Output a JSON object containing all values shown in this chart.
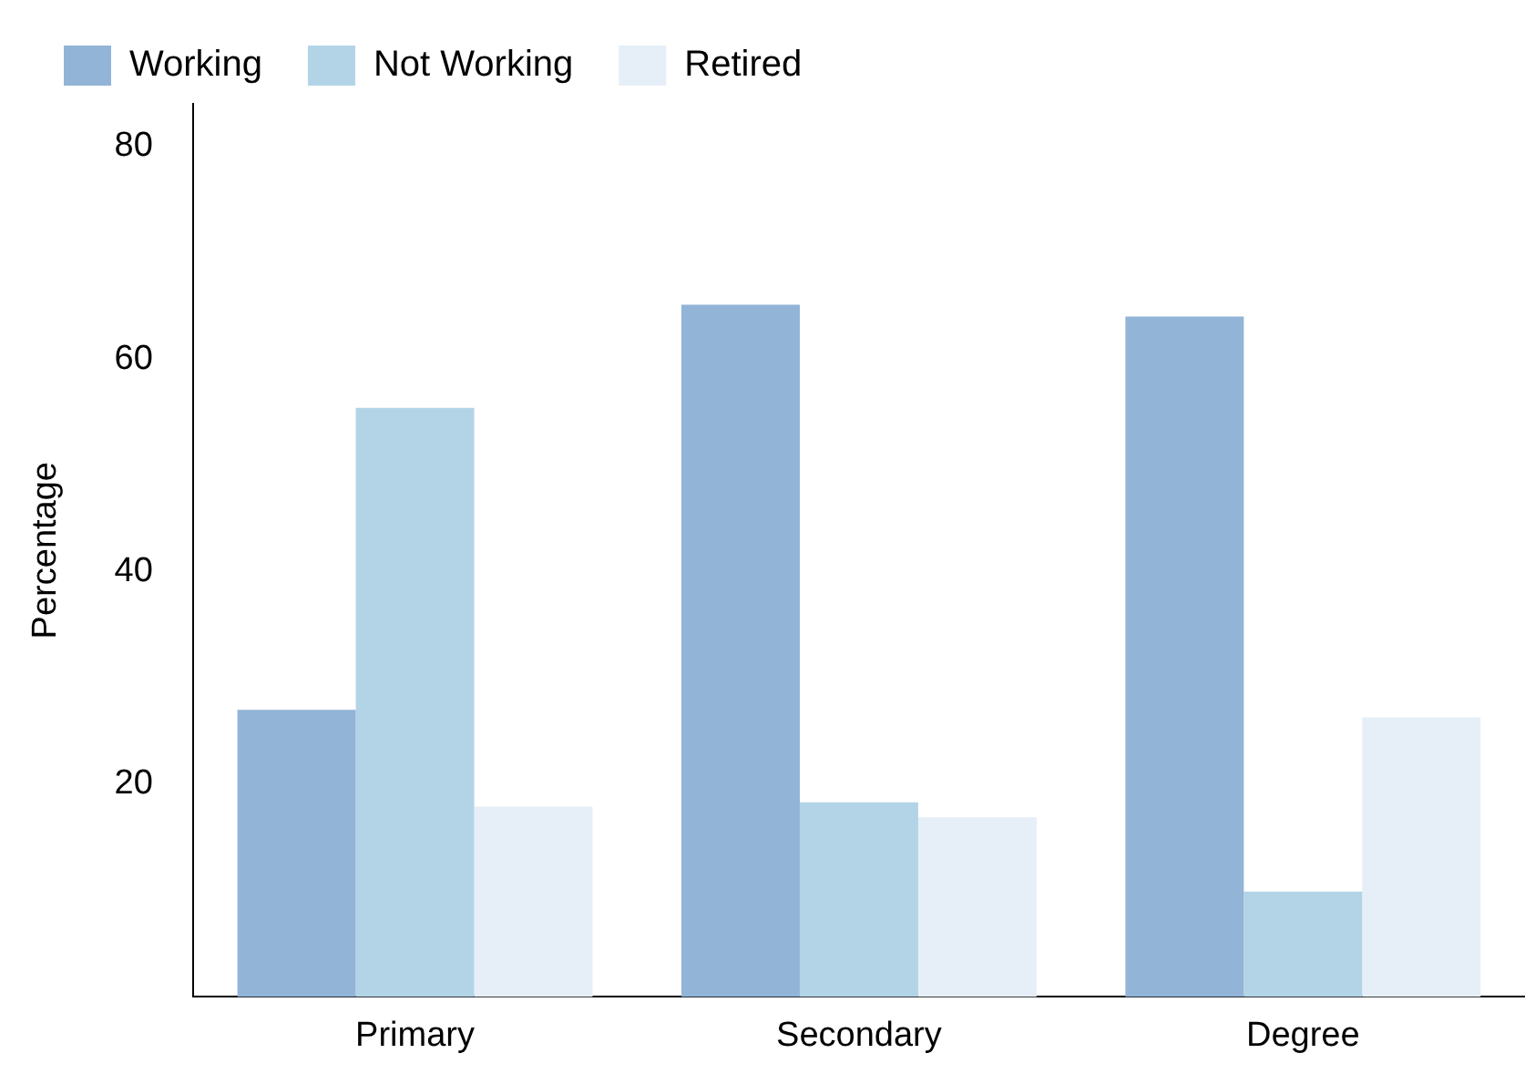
{
  "chart_data": {
    "type": "bar",
    "ylabel": "Percentage",
    "categories": [
      "Primary",
      "Secondary",
      "Degree"
    ],
    "series": [
      {
        "name": "Working",
        "color": "#92b4d6",
        "values": [
          27,
          65.1,
          64
        ]
      },
      {
        "name": "Not Working",
        "color": "#b3d4e6",
        "values": [
          55.4,
          18.3,
          9.9
        ]
      },
      {
        "name": "Retired",
        "color": "#e6eff7",
        "values": [
          17.9,
          16.9,
          26.3
        ]
      }
    ],
    "ylim": [
      0,
      84
    ],
    "yticks": [
      20,
      40,
      60,
      80
    ],
    "grid": false,
    "legend": "top"
  }
}
